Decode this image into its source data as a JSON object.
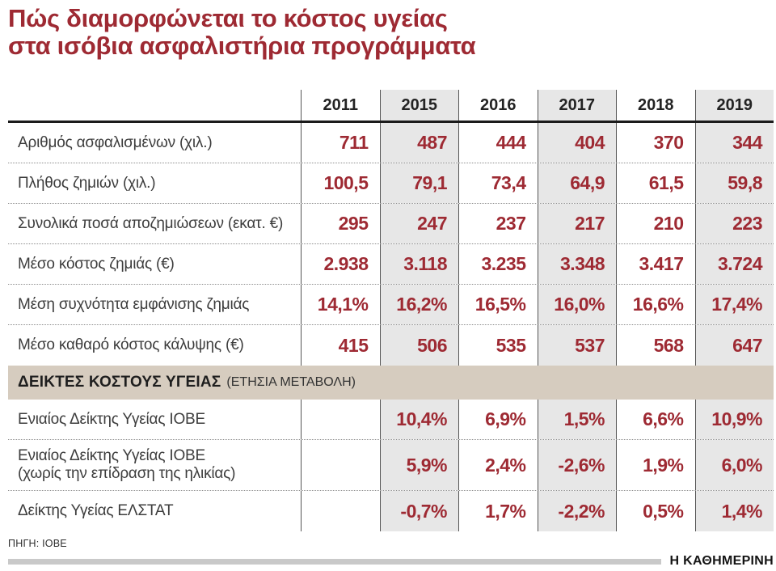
{
  "title": {
    "line1": "Πώς διαμορφώνεται το κόστος υγείας",
    "line2": "στα ισόβια ασφαλιστήρια προγράμματα"
  },
  "colors": {
    "accent": "#9e2a33",
    "shade": "#e7e7e7",
    "band": "#d6ccbf",
    "bar": "#c9c9c9"
  },
  "table": {
    "years": [
      "2011",
      "2015",
      "2016",
      "2017",
      "2018",
      "2019"
    ],
    "body": [
      {
        "type": "row",
        "label_lines": [
          "Αριθμός ασφαλισμένων (χιλ.)"
        ],
        "values": [
          "711",
          "487",
          "444",
          "404",
          "370",
          "344"
        ]
      },
      {
        "type": "row",
        "label_lines": [
          "Πλήθος ζημιών (χιλ.)"
        ],
        "values": [
          "100,5",
          "79,1",
          "73,4",
          "64,9",
          "61,5",
          "59,8"
        ]
      },
      {
        "type": "row",
        "label_lines": [
          "Συνολικά ποσά αποζημιώσεων (εκατ. €)"
        ],
        "values": [
          "295",
          "247",
          "237",
          "217",
          "210",
          "223"
        ]
      },
      {
        "type": "row",
        "label_lines": [
          "Μέσο κόστος ζημιάς (€)"
        ],
        "values": [
          "2.938",
          "3.118",
          "3.235",
          "3.348",
          "3.417",
          "3.724"
        ]
      },
      {
        "type": "row",
        "label_lines": [
          "Μέση συχνότητα εμφάνισης ζημιάς"
        ],
        "values": [
          "14,1%",
          "16,2%",
          "16,5%",
          "16,0%",
          "16,6%",
          "17,4%"
        ]
      },
      {
        "type": "row",
        "label_lines": [
          "Μέσο καθαρό κόστος κάλυψης (€)"
        ],
        "values": [
          "415",
          "506",
          "535",
          "537",
          "568",
          "647"
        ]
      },
      {
        "type": "section",
        "bold": "ΔΕΙΚΤΕΣ ΚΟΣΤΟΥΣ ΥΓΕΙΑΣ",
        "normal": "(ΕΤΗΣΙΑ ΜΕΤΑΒΟΛΗ)"
      },
      {
        "type": "row",
        "label_lines": [
          "Ενιαίος Δείκτης Υγείας ΙΟΒΕ"
        ],
        "values": [
          "",
          "10,4%",
          "6,9%",
          "1,5%",
          "6,6%",
          "10,9%"
        ]
      },
      {
        "type": "row",
        "label_lines": [
          "Ενιαίος Δείκτης Υγείας ΙΟΒΕ",
          "(χωρίς την επίδραση της ηλικίας)"
        ],
        "values": [
          "",
          "5,9%",
          "2,4%",
          "-2,6%",
          "1,9%",
          "6,0%"
        ]
      },
      {
        "type": "row",
        "label_lines": [
          "Δείκτης Υγείας ΕΛΣΤΑΤ"
        ],
        "values": [
          "",
          "-0,7%",
          "1,7%",
          "-2,2%",
          "0,5%",
          "1,4%"
        ]
      }
    ]
  },
  "footer": {
    "source": "ΠΗΓΗ: ΙΟΒΕ",
    "brand": "Η ΚΑΘΗΜΕΡΙΝΗ"
  },
  "chart_data": {
    "type": "table",
    "title": "Πώς διαμορφώνεται το κόστος υγείας στα ισόβια ασφαλιστήρια προγράμματα",
    "columns": [
      "2011",
      "2015",
      "2016",
      "2017",
      "2018",
      "2019"
    ],
    "rows": [
      {
        "label": "Αριθμός ασφαλισμένων (χιλ.)",
        "values": [
          711,
          487,
          444,
          404,
          370,
          344
        ]
      },
      {
        "label": "Πλήθος ζημιών (χιλ.)",
        "values": [
          100.5,
          79.1,
          73.4,
          64.9,
          61.5,
          59.8
        ]
      },
      {
        "label": "Συνολικά ποσά αποζημιώσεων (εκατ. €)",
        "values": [
          295,
          247,
          237,
          217,
          210,
          223
        ]
      },
      {
        "label": "Μέσο κόστος ζημιάς (€)",
        "values": [
          2938,
          3118,
          3235,
          3348,
          3417,
          3724
        ]
      },
      {
        "label": "Μέση συχνότητα εμφάνισης ζημιάς (%)",
        "values": [
          14.1,
          16.2,
          16.5,
          16.0,
          16.6,
          17.4
        ]
      },
      {
        "label": "Μέσο καθαρό κόστος κάλυψης (€)",
        "values": [
          415,
          506,
          535,
          537,
          568,
          647
        ]
      },
      {
        "label": "Ενιαίος Δείκτης Υγείας ΙΟΒΕ (%)",
        "group": "ΔΕΙΚΤΕΣ ΚΟΣΤΟΥΣ ΥΓΕΙΑΣ (ΕΤΗΣΙΑ ΜΕΤΑΒΟΛΗ)",
        "values": [
          null,
          10.4,
          6.9,
          1.5,
          6.6,
          10.9
        ]
      },
      {
        "label": "Ενιαίος Δείκτης Υγείας ΙΟΒΕ (χωρίς την επίδραση της ηλικίας) (%)",
        "group": "ΔΕΙΚΤΕΣ ΚΟΣΤΟΥΣ ΥΓΕΙΑΣ (ΕΤΗΣΙΑ ΜΕΤΑΒΟΛΗ)",
        "values": [
          null,
          5.9,
          2.4,
          -2.6,
          1.9,
          6.0
        ]
      },
      {
        "label": "Δείκτης Υγείας ΕΛΣΤΑΤ (%)",
        "group": "ΔΕΙΚΤΕΣ ΚΟΣΤΟΥΣ ΥΓΕΙΑΣ (ΕΤΗΣΙΑ ΜΕΤΑΒΟΛΗ)",
        "values": [
          null,
          -0.7,
          1.7,
          -2.2,
          0.5,
          1.4
        ]
      }
    ],
    "source": "ΠΗΓΗ: ΙΟΒΕ"
  }
}
